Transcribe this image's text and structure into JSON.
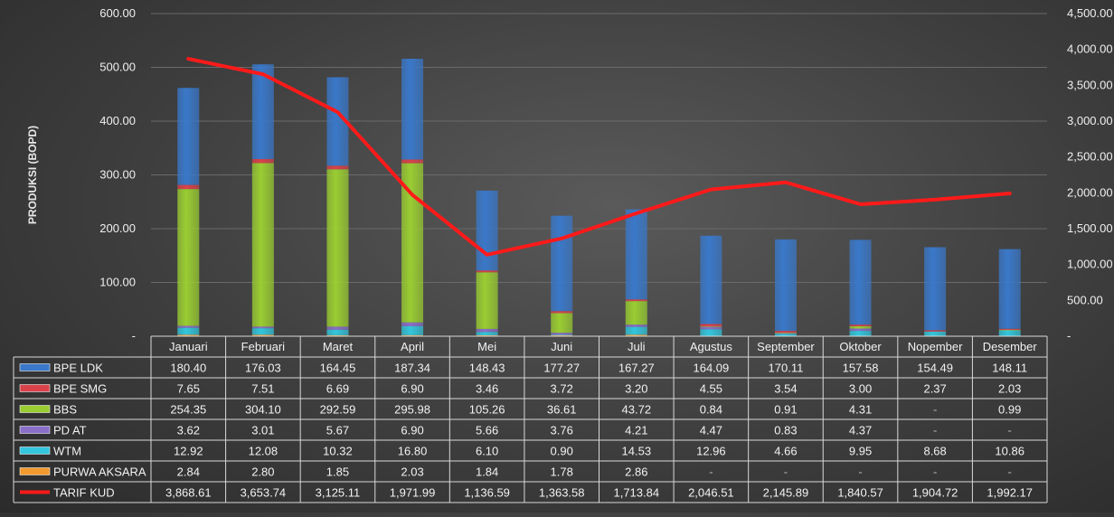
{
  "chart_data": {
    "type": "bar",
    "stacked": true,
    "ylabel": "PRODUKSI (BOPD)",
    "y2label": "",
    "ylim": [
      0,
      600
    ],
    "y2lim": [
      0,
      4500
    ],
    "yticks": [
      "-",
      "100.00",
      "200.00",
      "300.00",
      "400.00",
      "500.00",
      "600.00"
    ],
    "y2ticks": [
      "-",
      "500.00",
      "1,000.00",
      "1,500.00",
      "2,000.00",
      "2,500.00",
      "3,000.00",
      "3,500.00",
      "4,000.00",
      "4,500.00"
    ],
    "categories": [
      "Januari",
      "Februari",
      "Maret",
      "April",
      "Mei",
      "Juni",
      "Juli",
      "Agustus",
      "September",
      "Oktober",
      "Nopember",
      "Desember"
    ],
    "series": [
      {
        "name": "BPE LDK",
        "kind": "bar",
        "color": "#3a78c9",
        "values": [
          180.4,
          176.03,
          164.45,
          187.34,
          148.43,
          177.27,
          167.27,
          164.09,
          170.11,
          157.58,
          154.49,
          148.11
        ],
        "labels": [
          "180.40",
          "176.03",
          "164.45",
          "187.34",
          "148.43",
          "177.27",
          "167.27",
          "164.09",
          "170.11",
          "157.58",
          "154.49",
          "148.11"
        ]
      },
      {
        "name": "BPE SMG",
        "kind": "bar",
        "color": "#d9424a",
        "values": [
          7.65,
          7.51,
          6.69,
          6.9,
          3.46,
          3.72,
          3.2,
          4.55,
          3.54,
          3.0,
          2.37,
          2.03
        ],
        "labels": [
          "7.65",
          "7.51",
          "6.69",
          "6.90",
          "3.46",
          "3.72",
          "3.20",
          "4.55",
          "3.54",
          "3.00",
          "2.37",
          "2.03"
        ]
      },
      {
        "name": "BBS",
        "kind": "bar",
        "color": "#9acd32",
        "values": [
          254.35,
          304.1,
          292.59,
          295.98,
          105.26,
          36.61,
          43.72,
          0.84,
          0.91,
          4.31,
          0,
          0.99
        ],
        "labels": [
          "254.35",
          "304.10",
          "292.59",
          "295.98",
          "105.26",
          "36.61",
          "43.72",
          "0.84",
          "0.91",
          "4.31",
          "-",
          "0.99"
        ]
      },
      {
        "name": "PD AT",
        "kind": "bar",
        "color": "#8a6fc9",
        "values": [
          3.62,
          3.01,
          5.67,
          6.9,
          5.66,
          3.76,
          4.21,
          4.47,
          0.83,
          4.37,
          0,
          0
        ],
        "labels": [
          "3.62",
          "3.01",
          "5.67",
          "6.90",
          "5.66",
          "3.76",
          "4.21",
          "4.47",
          "0.83",
          "4.37",
          "-",
          "-"
        ]
      },
      {
        "name": "WTM",
        "kind": "bar",
        "color": "#33c6dd",
        "values": [
          12.92,
          12.08,
          10.32,
          16.8,
          6.1,
          0.9,
          14.53,
          12.96,
          4.66,
          9.95,
          8.68,
          10.86
        ],
        "labels": [
          "12.92",
          "12.08",
          "10.32",
          "16.80",
          "6.10",
          "0.90",
          "14.53",
          "12.96",
          "4.66",
          "9.95",
          "8.68",
          "10.86"
        ]
      },
      {
        "name": "PURWA AKSARA",
        "kind": "bar",
        "color": "#f29a2e",
        "values": [
          2.84,
          2.8,
          1.85,
          2.03,
          1.84,
          1.78,
          2.86,
          0,
          0,
          0,
          0,
          0
        ],
        "labels": [
          "2.84",
          "2.80",
          "1.85",
          "2.03",
          "1.84",
          "1.78",
          "2.86",
          "-",
          "-",
          "-",
          "-",
          "-"
        ]
      },
      {
        "name": "TARIF KUD",
        "kind": "line",
        "axis": "right",
        "color": "#ff1a1a",
        "values": [
          3868.61,
          3653.74,
          3125.11,
          1971.99,
          1136.59,
          1363.58,
          1713.84,
          2046.51,
          2145.89,
          1840.57,
          1904.72,
          1992.17
        ],
        "labels": [
          "3,868.61",
          "3,653.74",
          "3,125.11",
          "1,971.99",
          "1,136.59",
          "1,363.58",
          "1,713.84",
          "2,046.51",
          "2,145.89",
          "1,840.57",
          "1,904.72",
          "1,992.17"
        ]
      }
    ],
    "legend": "table-below",
    "grid": true
  }
}
